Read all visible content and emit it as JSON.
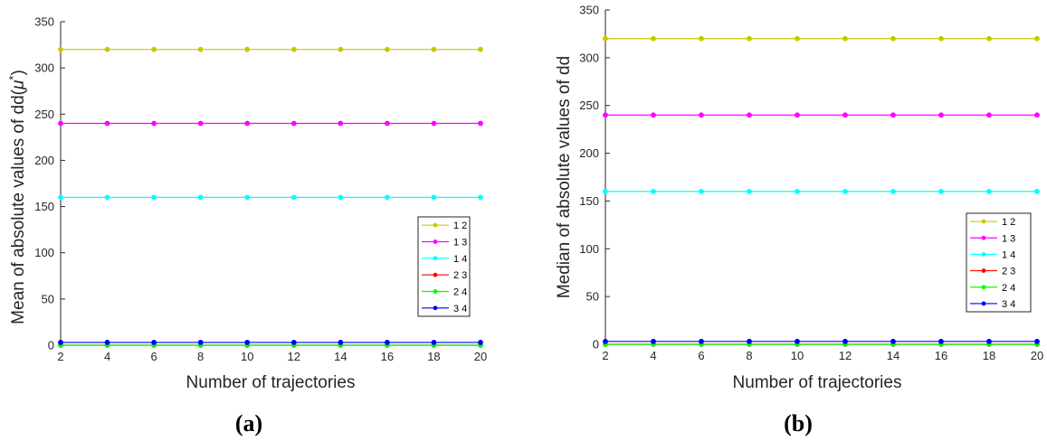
{
  "chart_data": [
    {
      "type": "line",
      "panel_label": "(a)",
      "xlabel": "Number of trajectories",
      "ylabel_main": "Mean of absolute values of dd(",
      "ylabel_symbol": "μ",
      "ylabel_superscript": "*",
      "ylabel_close": ")",
      "x": [
        2,
        4,
        6,
        8,
        10,
        12,
        14,
        16,
        18,
        20
      ],
      "xlim": [
        2,
        20
      ],
      "ylim": [
        0,
        350
      ],
      "xticks": [
        2,
        4,
        6,
        8,
        10,
        12,
        14,
        16,
        18,
        20
      ],
      "yticks": [
        0,
        50,
        100,
        150,
        200,
        250,
        300,
        350
      ],
      "grid": false,
      "legend_position": "lower-right",
      "series": [
        {
          "name": "1 2",
          "color": "#c8c800",
          "values": [
            320,
            320,
            320,
            320,
            320,
            320,
            320,
            320,
            320,
            320
          ]
        },
        {
          "name": "1 3",
          "color": "#ff00ff",
          "values": [
            240,
            240,
            240,
            240,
            240,
            240,
            240,
            240,
            240,
            240
          ]
        },
        {
          "name": "1 4",
          "color": "#00ffff",
          "values": [
            160,
            160,
            160,
            160,
            160,
            160,
            160,
            160,
            160,
            160
          ]
        },
        {
          "name": "2 3",
          "color": "#ff0000",
          "values": [
            0,
            0,
            0,
            0,
            0,
            0,
            0,
            0,
            0,
            0
          ]
        },
        {
          "name": "2 4",
          "color": "#00ff00",
          "values": [
            0,
            0,
            0,
            0,
            0,
            0,
            0,
            0,
            0,
            0
          ]
        },
        {
          "name": "3 4",
          "color": "#0000ff",
          "values": [
            3,
            3,
            3,
            3,
            3,
            3,
            3,
            3,
            3,
            3
          ]
        }
      ]
    },
    {
      "type": "line",
      "panel_label": "(b)",
      "xlabel": "Number of trajectories",
      "ylabel_main": "Median of absolute values of dd",
      "ylabel_symbol": "",
      "ylabel_superscript": "",
      "ylabel_close": "",
      "x": [
        2,
        4,
        6,
        8,
        10,
        12,
        14,
        16,
        18,
        20
      ],
      "xlim": [
        2,
        20
      ],
      "ylim": [
        0,
        350
      ],
      "xticks": [
        2,
        4,
        6,
        8,
        10,
        12,
        14,
        16,
        18,
        20
      ],
      "yticks": [
        0,
        50,
        100,
        150,
        200,
        250,
        300,
        350
      ],
      "grid": false,
      "legend_position": "lower-right",
      "series": [
        {
          "name": "1 2",
          "color": "#c8c800",
          "values": [
            320,
            320,
            320,
            320,
            320,
            320,
            320,
            320,
            320,
            320
          ]
        },
        {
          "name": "1 3",
          "color": "#ff00ff",
          "values": [
            240,
            240,
            240,
            240,
            240,
            240,
            240,
            240,
            240,
            240
          ]
        },
        {
          "name": "1 4",
          "color": "#00ffff",
          "values": [
            160,
            160,
            160,
            160,
            160,
            160,
            160,
            160,
            160,
            160
          ]
        },
        {
          "name": "2 3",
          "color": "#ff0000",
          "values": [
            0,
            0,
            0,
            0,
            0,
            0,
            0,
            0,
            0,
            0
          ]
        },
        {
          "name": "2 4",
          "color": "#00ff00",
          "values": [
            0,
            0,
            0,
            0,
            0,
            0,
            0,
            0,
            0,
            0
          ]
        },
        {
          "name": "3 4",
          "color": "#0000ff",
          "values": [
            3,
            3,
            3,
            3,
            3,
            3,
            3,
            3,
            3,
            3
          ]
        }
      ]
    }
  ]
}
